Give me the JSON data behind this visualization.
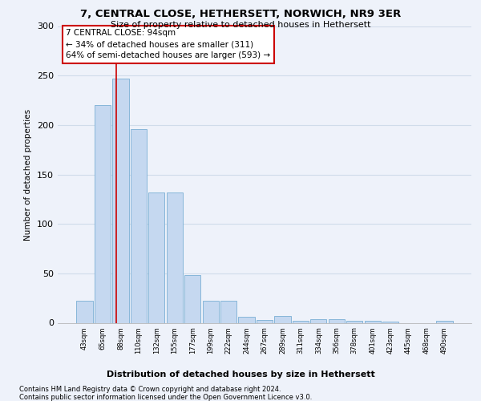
{
  "title1": "7, CENTRAL CLOSE, HETHERSETT, NORWICH, NR9 3ER",
  "title2": "Size of property relative to detached houses in Hethersett",
  "xlabel": "Distribution of detached houses by size in Hethersett",
  "ylabel": "Number of detached properties",
  "bar_labels": [
    "43sqm",
    "65sqm",
    "88sqm",
    "110sqm",
    "132sqm",
    "155sqm",
    "177sqm",
    "199sqm",
    "222sqm",
    "244sqm",
    "267sqm",
    "289sqm",
    "311sqm",
    "334sqm",
    "356sqm",
    "378sqm",
    "401sqm",
    "423sqm",
    "445sqm",
    "468sqm",
    "490sqm"
  ],
  "bar_values": [
    22,
    220,
    247,
    196,
    132,
    132,
    48,
    22,
    22,
    6,
    3,
    7,
    2,
    4,
    4,
    2,
    2,
    1,
    0,
    0,
    2
  ],
  "bar_color": "#c5d8f0",
  "bar_edge_color": "#7aafd4",
  "grid_color": "#d0dcea",
  "annotation_text": "7 CENTRAL CLOSE: 94sqm\n← 34% of detached houses are smaller (311)\n64% of semi-detached houses are larger (593) →",
  "annotation_box_facecolor": "#ffffff",
  "annotation_box_edgecolor": "#cc0000",
  "footer_text": "Contains HM Land Registry data © Crown copyright and database right 2024.\nContains public sector information licensed under the Open Government Licence v3.0.",
  "ylim": [
    0,
    300
  ],
  "yticks": [
    0,
    50,
    100,
    150,
    200,
    250,
    300
  ],
  "red_line_color": "#cc0000",
  "background_color": "#eef2fa",
  "property_sqm": 94,
  "bin_edges": [
    43,
    65,
    88,
    110,
    132,
    155,
    177,
    199,
    222,
    244,
    267,
    289,
    311,
    334,
    356,
    378,
    401,
    423,
    445,
    468,
    490,
    512
  ]
}
